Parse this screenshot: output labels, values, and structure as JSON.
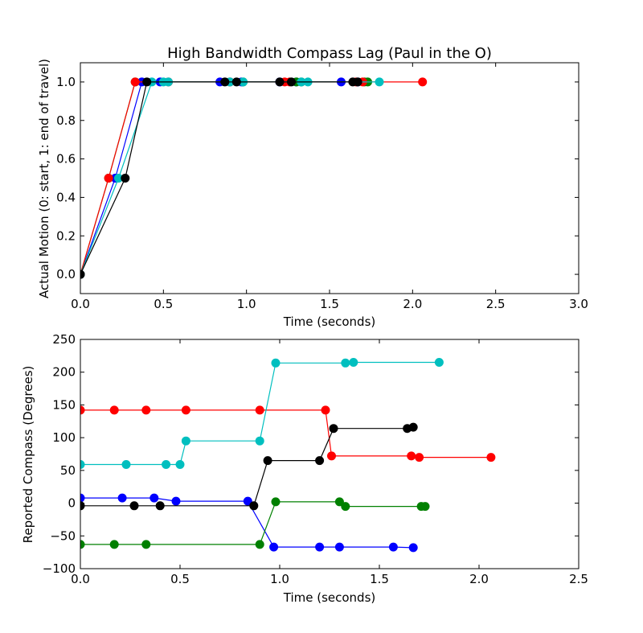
{
  "figure": {
    "title": "High Bandwidth Compass Lag (Paul in the O)"
  },
  "chart_data": [
    {
      "type": "line",
      "title": "High Bandwidth Compass Lag (Paul in the O)",
      "xlabel": "Time (seconds)",
      "ylabel": "Actual Motion (0: start, 1: end of travel)",
      "xlim": [
        0,
        3.0
      ],
      "ylim": [
        -0.1,
        1.1
      ],
      "xticks": [
        "0.0",
        "0.5",
        "1.0",
        "1.5",
        "2.0",
        "2.5",
        "3.0"
      ],
      "yticks": [
        "0.0",
        "0.2",
        "0.4",
        "0.6",
        "0.8",
        "1.0"
      ],
      "grid": false,
      "series": [
        {
          "color": "#0000ff",
          "x": [
            0,
            0.21,
            0.37,
            0.48,
            0.84,
            0.97,
            1.2,
            1.3,
            1.57,
            1.67
          ],
          "y": [
            0,
            0.5,
            1.0,
            1.0,
            1.0,
            1.0,
            1.0,
            1.0,
            1.0,
            1.0
          ]
        },
        {
          "color": "#008000",
          "x": [
            0,
            0.17,
            0.33,
            0.9,
            0.98,
            1.3,
            1.33,
            1.71,
            1.73
          ],
          "y": [
            0,
            0.5,
            1.0,
            1.0,
            1.0,
            1.0,
            1.0,
            1.0,
            1.0
          ]
        },
        {
          "color": "#ff0000",
          "x": [
            0,
            0.17,
            0.33,
            0.53,
            0.9,
            1.23,
            1.26,
            1.66,
            1.7,
            2.06
          ],
          "y": [
            0,
            0.5,
            1.0,
            1.0,
            1.0,
            1.0,
            1.0,
            1.0,
            1.0,
            1.0
          ]
        },
        {
          "color": "#00bfbf",
          "x": [
            0,
            0.23,
            0.43,
            0.5,
            0.53,
            0.9,
            0.98,
            1.33,
            1.37,
            1.8
          ],
          "y": [
            0,
            0.5,
            1.0,
            1.0,
            1.0,
            1.0,
            1.0,
            1.0,
            1.0,
            1.0
          ]
        },
        {
          "color": "#000000",
          "x": [
            0,
            0.27,
            0.4,
            0.87,
            0.94,
            1.2,
            1.27,
            1.64,
            1.67
          ],
          "y": [
            0,
            0.5,
            1.0,
            1.0,
            1.0,
            1.0,
            1.0,
            1.0,
            1.0
          ]
        }
      ]
    },
    {
      "type": "line",
      "title": "",
      "xlabel": "Time (seconds)",
      "ylabel": "Reported Compass (Degrees)",
      "xlim": [
        0,
        2.5
      ],
      "ylim": [
        -100,
        250
      ],
      "xticks": [
        "0.0",
        "0.5",
        "1.0",
        "1.5",
        "2.0",
        "2.5"
      ],
      "yticks": [
        "−100",
        "−50",
        "0",
        "50",
        "100",
        "150",
        "200",
        "250"
      ],
      "grid": false,
      "series": [
        {
          "color": "#0000ff",
          "x": [
            0,
            0.21,
            0.37,
            0.48,
            0.84,
            0.97,
            1.2,
            1.3,
            1.57,
            1.67
          ],
          "y": [
            8,
            8,
            8,
            3,
            3,
            -67,
            -67,
            -67,
            -67,
            -68
          ]
        },
        {
          "color": "#008000",
          "x": [
            0,
            0.17,
            0.33,
            0.9,
            0.98,
            1.3,
            1.33,
            1.71,
            1.73
          ],
          "y": [
            -63,
            -63,
            -63,
            -63,
            2,
            2,
            -5,
            -5,
            -5
          ]
        },
        {
          "color": "#ff0000",
          "x": [
            0,
            0.17,
            0.33,
            0.53,
            0.9,
            1.23,
            1.26,
            1.66,
            1.7,
            2.06
          ],
          "y": [
            142,
            142,
            142,
            142,
            142,
            142,
            72,
            72,
            70,
            70
          ]
        },
        {
          "color": "#00bfbf",
          "x": [
            0,
            0.23,
            0.43,
            0.5,
            0.53,
            0.9,
            0.98,
            1.33,
            1.37,
            1.8
          ],
          "y": [
            59,
            59,
            59,
            59,
            95,
            95,
            214,
            214,
            215,
            215
          ]
        },
        {
          "color": "#000000",
          "x": [
            0,
            0.27,
            0.4,
            0.87,
            0.94,
            1.2,
            1.27,
            1.64,
            1.67
          ],
          "y": [
            -4,
            -4,
            -4,
            -4,
            65,
            65,
            114,
            114,
            116
          ]
        }
      ]
    }
  ]
}
